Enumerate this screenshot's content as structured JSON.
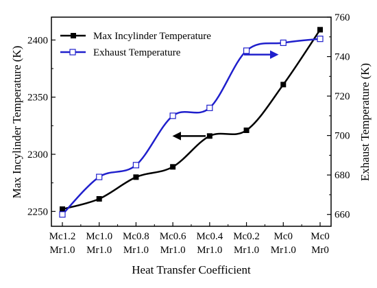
{
  "chart_data": {
    "type": "line",
    "categories": [
      [
        "Mc1.2",
        "Mr1.0"
      ],
      [
        "Mc1.0",
        "Mr1.0"
      ],
      [
        "Mc0.8",
        "Mr1.0"
      ],
      [
        "Mc0.6",
        "Mr1.0"
      ],
      [
        "Mc0.4",
        "Mr1.0"
      ],
      [
        "Mc0.2",
        "Mr1.0"
      ],
      [
        "Mc0",
        "Mr1.0"
      ],
      [
        "Mc0",
        "Mr0"
      ]
    ],
    "xlabel": "Heat Transfer Coefficient",
    "y_left": {
      "label": "Max Incylinder Temperature (K)",
      "lim": [
        2237,
        2420
      ],
      "ticks": [
        2250,
        2300,
        2350,
        2400
      ]
    },
    "y_right": {
      "label": "Exhaust Temperature (K)",
      "lim": [
        654,
        760
      ],
      "ticks": [
        660,
        680,
        700,
        720,
        740,
        760
      ]
    },
    "series": [
      {
        "name": "Max Incylinder Temperature",
        "axis": "left",
        "color": "#000000",
        "marker": "filled-square",
        "values": [
          2252,
          2261,
          2280,
          2289,
          2316,
          2321,
          2361,
          2409
        ]
      },
      {
        "name": "Exhaust Temperature",
        "axis": "right",
        "color": "#1f1fcc",
        "marker": "hollow-square",
        "values": [
          660,
          679,
          685,
          710,
          714,
          743,
          747,
          749
        ]
      }
    ],
    "legend": "top-left",
    "grid": false,
    "annotations": [
      {
        "type": "arrow",
        "direction": "left",
        "series": "Max Incylinder Temperature"
      },
      {
        "type": "arrow",
        "direction": "right",
        "series": "Exhaust Temperature"
      }
    ]
  }
}
